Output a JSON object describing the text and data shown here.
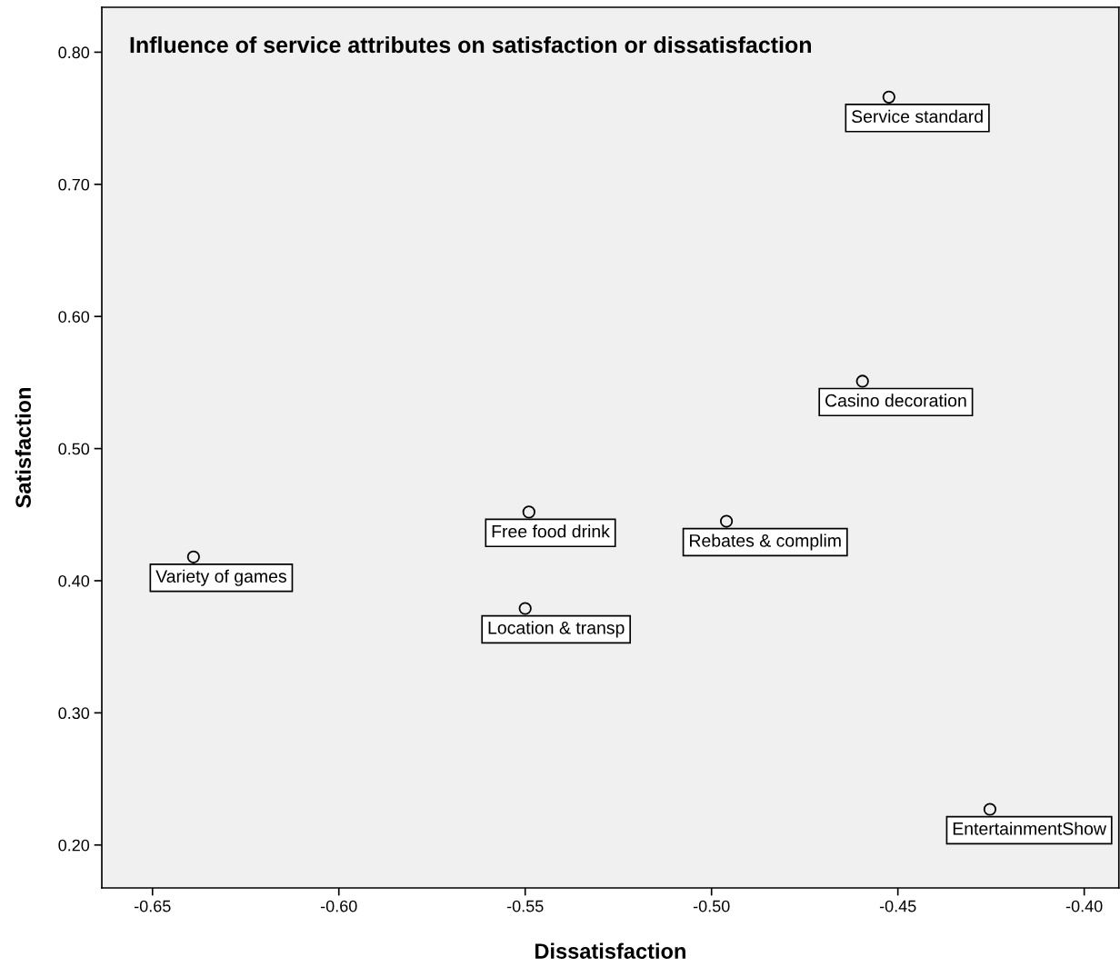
{
  "chart_data": {
    "type": "scatter",
    "title": "Influence of service attributes on satisfaction or dissatisfaction",
    "xlabel": "Dissatisfaction",
    "ylabel": "Satisfaction",
    "x": [
      -0.4524,
      -0.4595,
      -0.549,
      -0.496,
      -0.639,
      -0.55,
      -0.4253
    ],
    "series": [
      {
        "color": "#000000",
        "values": [
          0.766,
          0.551,
          0.452,
          0.445,
          0.418,
          0.379,
          0.227
        ]
      }
    ],
    "annotations": [
      {
        "text": "Service standard",
        "x": -0.4524,
        "y": 0.766
      },
      {
        "text": "Casino decoration",
        "x": -0.4595,
        "y": 0.551
      },
      {
        "text": "Free food drink",
        "x": -0.549,
        "y": 0.452
      },
      {
        "text": "Rebates & complim",
        "x": -0.496,
        "y": 0.445
      },
      {
        "text": "Variety of games",
        "x": -0.639,
        "y": 0.418
      },
      {
        "text": "Location & transp",
        "x": -0.55,
        "y": 0.379
      },
      {
        "text": "EntertainmentShow",
        "x": -0.4253,
        "y": 0.227
      }
    ],
    "xlim": [
      -0.6636,
      -0.3907
    ],
    "ylim": [
      0.1675,
      0.834
    ],
    "xticks": [
      {
        "value": -0.65,
        "label": "-0.65"
      },
      {
        "value": -0.6,
        "label": "-0.60"
      },
      {
        "value": -0.55,
        "label": "-0.55"
      },
      {
        "value": -0.5,
        "label": "-0.50"
      },
      {
        "value": -0.45,
        "label": "-0.45"
      },
      {
        "value": -0.4,
        "label": "-0.40"
      }
    ],
    "yticks": [
      {
        "value": 0.2,
        "label": "0.20"
      },
      {
        "value": 0.3,
        "label": "0.30"
      },
      {
        "value": 0.4,
        "label": "0.40"
      },
      {
        "value": 0.5,
        "label": "0.50"
      },
      {
        "value": 0.6,
        "label": "0.60"
      },
      {
        "value": 0.7,
        "label": "0.70"
      },
      {
        "value": 0.8,
        "label": "0.80"
      }
    ],
    "marker": "circle",
    "grid": false,
    "legend": false
  }
}
